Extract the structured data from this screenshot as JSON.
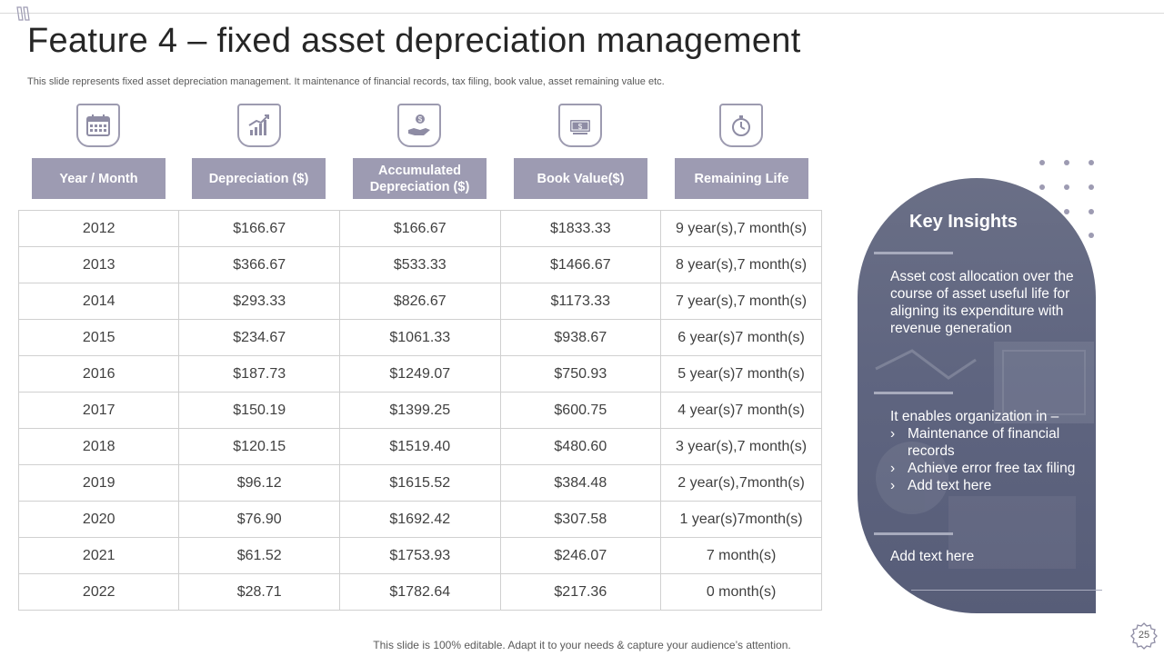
{
  "title": "Feature 4 – fixed asset depreciation management",
  "subtitle": "This slide represents fixed asset depreciation management. It maintenance of financial records, tax filing, book value,  asset remaining value etc.",
  "columns": [
    {
      "label": "Year / Month",
      "icon": "calendar-icon"
    },
    {
      "label": "Depreciation ($)",
      "icon": "growth-chart-icon"
    },
    {
      "label": "Accumulated Depreciation ($)",
      "icon": "money-hand-icon"
    },
    {
      "label": "Book Value($)",
      "icon": "cash-icon"
    },
    {
      "label": "Remaining Life",
      "icon": "stopwatch-icon"
    }
  ],
  "rows": [
    [
      "2012",
      "$166.67",
      "$166.67",
      "$1833.33",
      "9 year(s),7  month(s)"
    ],
    [
      "2013",
      "$366.67",
      "$533.33",
      "$1466.67",
      "8 year(s),7  month(s)"
    ],
    [
      "2014",
      "$293.33",
      "$826.67",
      "$1173.33",
      "7 year(s),7  month(s)"
    ],
    [
      "2015",
      "$234.67",
      "$1061.33",
      "$938.67",
      "6 year(s)7  month(s)"
    ],
    [
      "2016",
      "$187.73",
      "$1249.07",
      "$750.93",
      "5 year(s)7  month(s)"
    ],
    [
      "2017",
      "$150.19",
      "$1399.25",
      "$600.75",
      "4 year(s)7  month(s)"
    ],
    [
      "2018",
      "$120.15",
      "$1519.40",
      "$480.60",
      "3 year(s),7  month(s)"
    ],
    [
      "2019",
      "$96.12",
      "$1615.52",
      "$384.48",
      "2 year(s),7month(s)"
    ],
    [
      "2020",
      "$76.90",
      "$1692.42",
      "$307.58",
      "1 year(s)7month(s)"
    ],
    [
      "2021",
      "$61.52",
      "$1753.93",
      "$246.07",
      "7 month(s)"
    ],
    [
      "2022",
      "$28.71",
      "$1782.64",
      "$217.36",
      "0 month(s)"
    ]
  ],
  "insights": {
    "title": "Key Insights",
    "paragraph": "Asset cost allocation over the course of asset useful life for aligning its expenditure with revenue generation",
    "intro": "It enables organization in –",
    "bullets": [
      "Maintenance of financial records",
      "Achieve error free tax filing",
      "Add text here"
    ],
    "closing": "Add text here"
  },
  "footer": "This slide is 100% editable. Adapt it to your needs & capture your audience’s attention.",
  "page_number": "25",
  "colors": {
    "accent": "#9d9bb2",
    "panel": "#5f6580",
    "text": "#404040"
  }
}
